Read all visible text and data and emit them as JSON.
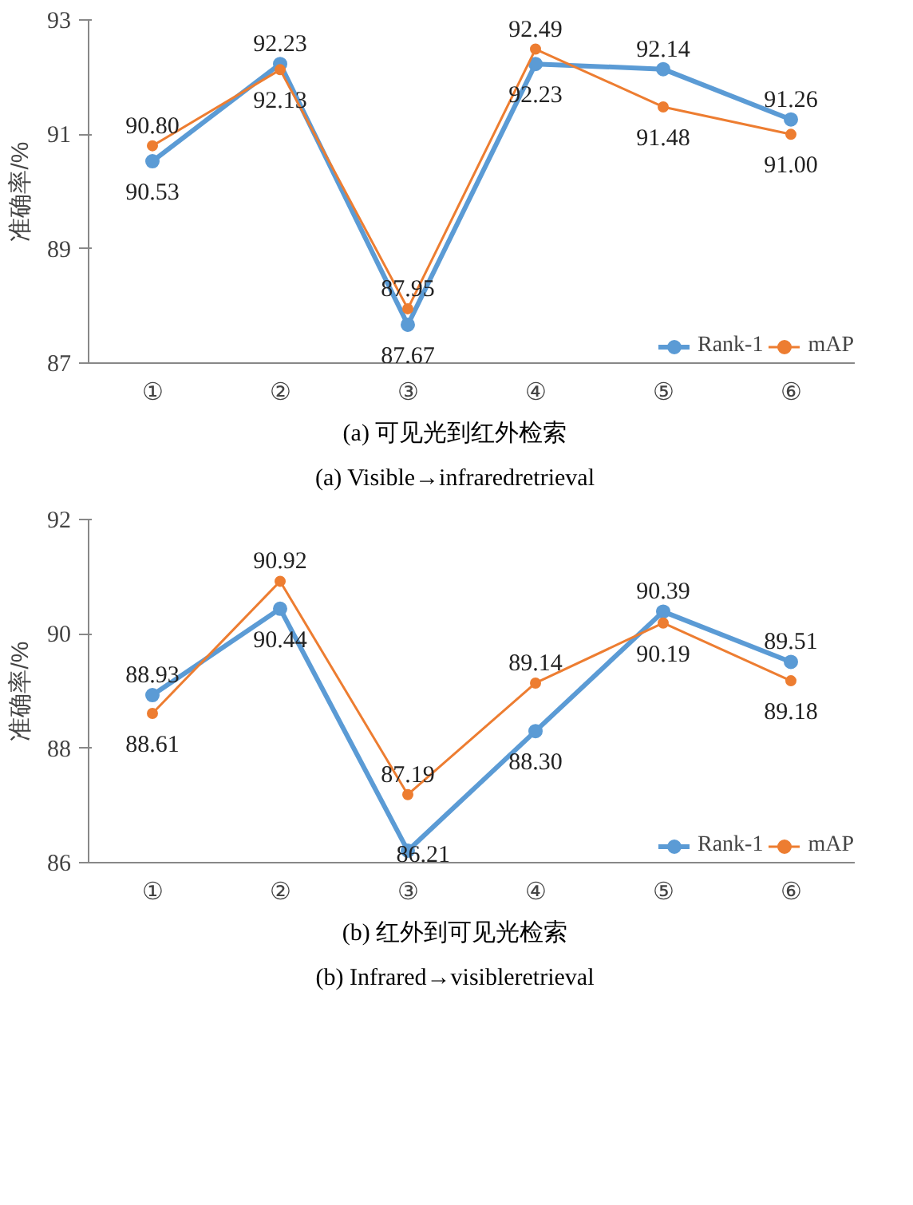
{
  "chart_data": [
    {
      "type": "line",
      "title": "(a) 可见光到红外检索",
      "subtitle": "(a) Visible→infraredretrieval",
      "ylabel": "准确率/%",
      "categories": [
        "①",
        "②",
        "③",
        "④",
        "⑤",
        "⑥"
      ],
      "series": [
        {
          "name": "Rank-1",
          "color": "#5b9bd5",
          "values": [
            90.53,
            92.23,
            87.67,
            92.23,
            92.14,
            91.26
          ],
          "value_labels": [
            "90.53",
            "92.23",
            "87.67",
            "92.23",
            "92.14",
            "91.26"
          ]
        },
        {
          "name": "mAP",
          "color": "#ed7d31",
          "values": [
            90.8,
            92.13,
            87.95,
            92.49,
            91.48,
            91.0
          ],
          "value_labels": [
            "90.80",
            "92.13",
            "87.95",
            "92.49",
            "91.48",
            "91.00"
          ]
        }
      ],
      "ylim": [
        87,
        93
      ],
      "yticks": [
        87,
        89,
        91,
        93
      ],
      "grid": false,
      "legend": "bottom right",
      "marker": "circle",
      "line_style": "solid"
    },
    {
      "type": "line",
      "title": "(b) 红外到可见光检索",
      "subtitle": "(b) Infrared→visibleretrieval",
      "ylabel": "准确率/%",
      "categories": [
        "①",
        "②",
        "③",
        "④",
        "⑤",
        "⑥"
      ],
      "series": [
        {
          "name": "Rank-1",
          "color": "#5b9bd5",
          "values": [
            88.93,
            90.44,
            86.21,
            88.3,
            90.39,
            89.51
          ],
          "value_labels": [
            "88.93",
            "90.44",
            "86.21",
            "88.30",
            "90.39",
            "89.51"
          ]
        },
        {
          "name": "mAP",
          "color": "#ed7d31",
          "values": [
            88.61,
            90.92,
            87.19,
            89.14,
            90.19,
            89.18
          ],
          "value_labels": [
            "88.61",
            "90.92",
            "87.19",
            "89.14",
            "90.19",
            "89.18"
          ]
        }
      ],
      "ylim": [
        86,
        92
      ],
      "yticks": [
        86,
        88,
        90,
        92
      ],
      "grid": false,
      "legend": "bottom right",
      "marker": "circle",
      "line_style": "solid"
    }
  ]
}
